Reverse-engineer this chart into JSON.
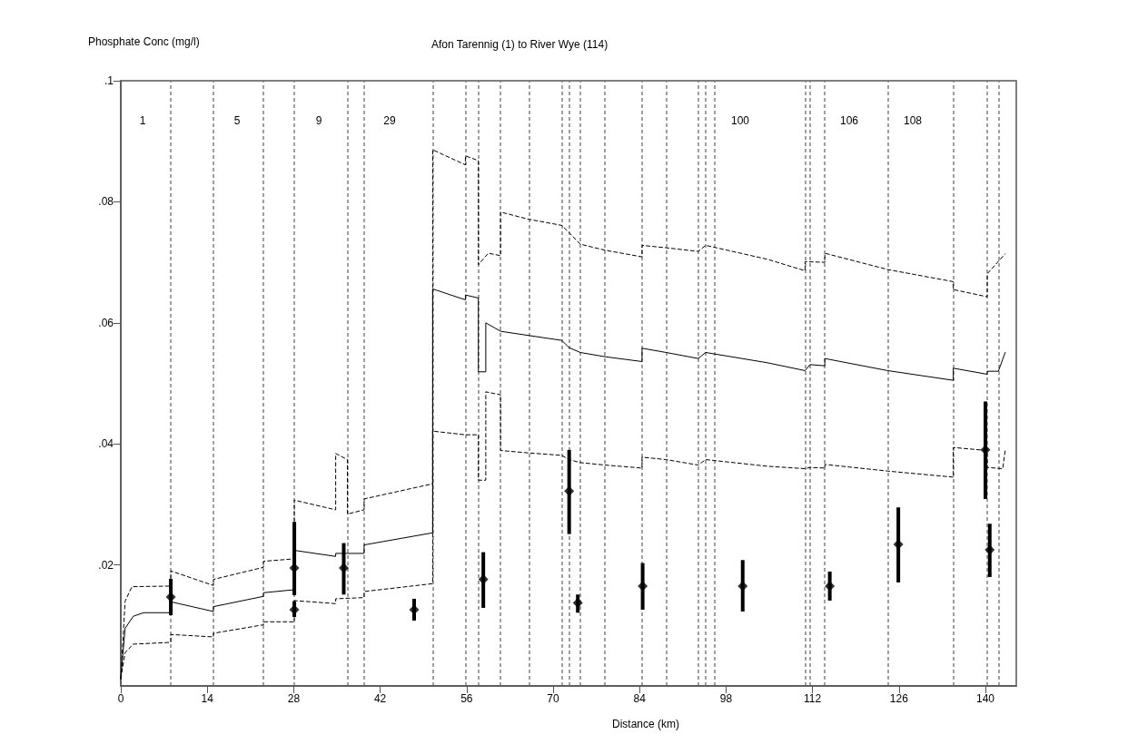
{
  "chart_data": {
    "type": "line",
    "title": "Afon Tarennig (1) to River Wye (114)",
    "ylabel": "Phosphate Conc (mg/l)",
    "xlabel": "Distance (km)",
    "xlim": [
      0,
      145
    ],
    "xticks": [
      0,
      14,
      28,
      42,
      56,
      70,
      84,
      98,
      112,
      126,
      140
    ],
    "ylim": [
      0,
      0.1
    ],
    "yticks": [
      {
        "value": 0.02,
        "label": ".02"
      },
      {
        "value": 0.04,
        "label": ".04"
      },
      {
        "value": 0.06,
        "label": ".06"
      },
      {
        "value": 0.08,
        "label": ".08"
      },
      {
        "value": 0.1,
        "label": ".1"
      }
    ],
    "grid": false,
    "series": [
      {
        "color": "#000000",
        "line_style": "dashed",
        "x": [
          0,
          0.7,
          1.8,
          8.1,
          8.1,
          15,
          15,
          23.1,
          23.1,
          28.1,
          28.1,
          34.8,
          34.8,
          36.7,
          36.7,
          39.4,
          39.4,
          50.5,
          50.5,
          55.8,
          55.8,
          57.9,
          57.9,
          59.5,
          61.5,
          61.5,
          66.1,
          71.4,
          72.6,
          74.4,
          78.4,
          84.4,
          84.4,
          88.3,
          93.5,
          94.7,
          104.7,
          110.8,
          110.8,
          114,
          114,
          124.2,
          134.8,
          134.8,
          140.3,
          140.3,
          143.2
        ],
        "values": [
          0.0012,
          0.014,
          0.0164,
          0.0165,
          0.019,
          0.0166,
          0.0176,
          0.0196,
          0.0206,
          0.021,
          0.0307,
          0.0291,
          0.0384,
          0.0374,
          0.0284,
          0.0291,
          0.0309,
          0.0334,
          0.0886,
          0.0861,
          0.0876,
          0.0868,
          0.0696,
          0.0715,
          0.0711,
          0.0783,
          0.0771,
          0.0761,
          0.0749,
          0.073,
          0.072,
          0.0709,
          0.0728,
          0.0724,
          0.0718,
          0.0728,
          0.0705,
          0.0686,
          0.0701,
          0.07,
          0.0715,
          0.0688,
          0.0668,
          0.0655,
          0.0643,
          0.0681,
          0.0714
        ]
      },
      {
        "color": "#000000",
        "line_style": "solid",
        "x": [
          0,
          0.7,
          2,
          3.7,
          8.1,
          8.1,
          15,
          15,
          23.1,
          23.1,
          28.1,
          28.1,
          34.8,
          34.8,
          39.4,
          39.4,
          50.5,
          50.5,
          55.8,
          55.8,
          57.9,
          57.9,
          59.1,
          59.1,
          61.5,
          66.1,
          71.4,
          72.6,
          74.4,
          78.4,
          84.4,
          84.4,
          88.3,
          93.5,
          94.7,
          104.7,
          110.8,
          111.6,
          114,
          114,
          124.2,
          134.8,
          134.8,
          140.3,
          140.3,
          142.1,
          143.2
        ],
        "values": [
          0.0012,
          0.0095,
          0.0115,
          0.0121,
          0.0121,
          0.0139,
          0.0123,
          0.0131,
          0.0148,
          0.0154,
          0.0159,
          0.0224,
          0.0214,
          0.0219,
          0.0219,
          0.0233,
          0.0253,
          0.0656,
          0.0638,
          0.0646,
          0.0641,
          0.0519,
          0.0519,
          0.06,
          0.0586,
          0.0579,
          0.0571,
          0.0559,
          0.0551,
          0.0544,
          0.0536,
          0.0558,
          0.0551,
          0.0541,
          0.0551,
          0.0534,
          0.0521,
          0.0531,
          0.0529,
          0.0541,
          0.0521,
          0.0505,
          0.0525,
          0.0515,
          0.052,
          0.052,
          0.0551
        ]
      },
      {
        "color": "#000000",
        "line_style": "dashed",
        "x": [
          0,
          0.7,
          2,
          8.1,
          8.1,
          15,
          15,
          23.1,
          23.1,
          28.1,
          28.1,
          34.8,
          34.8,
          39.4,
          39.4,
          50.5,
          50.5,
          55.8,
          57.9,
          57.9,
          59.1,
          59.1,
          61.5,
          61.5,
          66.1,
          71.4,
          72.6,
          74.4,
          78.4,
          84.4,
          84.4,
          88.3,
          93.5,
          94.7,
          104.7,
          110.8,
          111.6,
          114,
          114,
          124.2,
          134.8,
          134.8,
          140.3,
          140.3,
          142.8,
          143.2
        ],
        "values": [
          0.0012,
          0.0055,
          0.0069,
          0.0072,
          0.0085,
          0.0081,
          0.0087,
          0.0101,
          0.0106,
          0.0106,
          0.0141,
          0.0136,
          0.0144,
          0.0146,
          0.0156,
          0.0169,
          0.0421,
          0.0415,
          0.0415,
          0.034,
          0.034,
          0.0486,
          0.0481,
          0.0389,
          0.0385,
          0.0381,
          0.0374,
          0.0369,
          0.0365,
          0.036,
          0.0378,
          0.0374,
          0.0365,
          0.0374,
          0.0363,
          0.0359,
          0.0361,
          0.036,
          0.0366,
          0.0355,
          0.0345,
          0.0394,
          0.0389,
          0.0361,
          0.0359,
          0.0389
        ]
      },
      {
        "type": "scatter",
        "color": "#000000",
        "marker": "diamond",
        "x": [
          8.1,
          28.1,
          28.1,
          36.1,
          47.5,
          58.7,
          72.6,
          74.0,
          84.5,
          100.7,
          114.8,
          125.9,
          140.0,
          140.7
        ],
        "values": [
          0.0147,
          0.0195,
          0.0126,
          0.0195,
          0.0126,
          0.0176,
          0.0322,
          0.0137,
          0.0165,
          0.0165,
          0.0165,
          0.0234,
          0.039,
          0.0225
        ],
        "errors": [
          [
            0.0117,
            0.0177
          ],
          [
            0.015,
            0.0271
          ],
          [
            0.0114,
            0.014
          ],
          [
            0.0151,
            0.0236
          ],
          [
            0.0108,
            0.0144
          ],
          [
            0.0129,
            0.0221
          ],
          [
            0.0251,
            0.039
          ],
          [
            0.0121,
            0.0151
          ],
          [
            0.0126,
            0.0203
          ],
          [
            0.0123,
            0.0208
          ],
          [
            0.0141,
            0.0189
          ],
          [
            0.0171,
            0.0295
          ],
          [
            0.0309,
            0.047
          ],
          [
            0.018,
            0.0268
          ]
        ]
      }
    ],
    "ref_lines": [
      {
        "axis": "x",
        "value": 8.1,
        "color": "#808080",
        "line_style": "dashed"
      },
      {
        "axis": "x",
        "value": 15,
        "color": "#808080",
        "line_style": "dashed"
      },
      {
        "axis": "x",
        "value": 23.1,
        "color": "#808080",
        "line_style": "dashed"
      },
      {
        "axis": "x",
        "value": 28.1,
        "color": "#808080",
        "line_style": "dashed"
      },
      {
        "axis": "x",
        "value": 36.7,
        "color": "#808080",
        "line_style": "dashed"
      },
      {
        "axis": "x",
        "value": 39.4,
        "color": "#808080",
        "line_style": "dashed"
      },
      {
        "axis": "x",
        "value": 50.5,
        "color": "#808080",
        "line_style": "dashed"
      },
      {
        "axis": "x",
        "value": 55.8,
        "color": "#808080",
        "line_style": "dashed"
      },
      {
        "axis": "x",
        "value": 57.9,
        "color": "#808080",
        "line_style": "dashed"
      },
      {
        "axis": "x",
        "value": 61.5,
        "color": "#808080",
        "line_style": "dashed"
      },
      {
        "axis": "x",
        "value": 66.1,
        "color": "#808080",
        "line_style": "dashed"
      },
      {
        "axis": "x",
        "value": 71.4,
        "color": "#808080",
        "line_style": "dashed"
      },
      {
        "axis": "x",
        "value": 72.6,
        "color": "#808080",
        "line_style": "dashed"
      },
      {
        "axis": "x",
        "value": 74.4,
        "color": "#808080",
        "line_style": "dashed"
      },
      {
        "axis": "x",
        "value": 78.4,
        "color": "#808080",
        "line_style": "dashed"
      },
      {
        "axis": "x",
        "value": 84.4,
        "color": "#808080",
        "line_style": "dashed"
      },
      {
        "axis": "x",
        "value": 88.3,
        "color": "#808080",
        "line_style": "dashed"
      },
      {
        "axis": "x",
        "value": 93.5,
        "color": "#808080",
        "line_style": "dashed"
      },
      {
        "axis": "x",
        "value": 94.7,
        "color": "#808080",
        "line_style": "dashed"
      },
      {
        "axis": "x",
        "value": 96.2,
        "color": "#808080",
        "line_style": "dashed"
      },
      {
        "axis": "x",
        "value": 110.8,
        "color": "#808080",
        "line_style": "dashed"
      },
      {
        "axis": "x",
        "value": 111.6,
        "color": "#808080",
        "line_style": "dashed"
      },
      {
        "axis": "x",
        "value": 114,
        "color": "#808080",
        "line_style": "dashed"
      },
      {
        "axis": "x",
        "value": 124.2,
        "color": "#808080",
        "line_style": "dashed"
      },
      {
        "axis": "x",
        "value": 134.8,
        "color": "#808080",
        "line_style": "dashed"
      },
      {
        "axis": "x",
        "value": 140.3,
        "color": "#808080",
        "line_style": "dashed"
      },
      {
        "axis": "x",
        "value": 142.1,
        "color": "#808080",
        "line_style": "dashed"
      }
    ],
    "annotations": [
      "1",
      "5",
      "9",
      "29",
      "100",
      "106",
      "108"
    ]
  }
}
